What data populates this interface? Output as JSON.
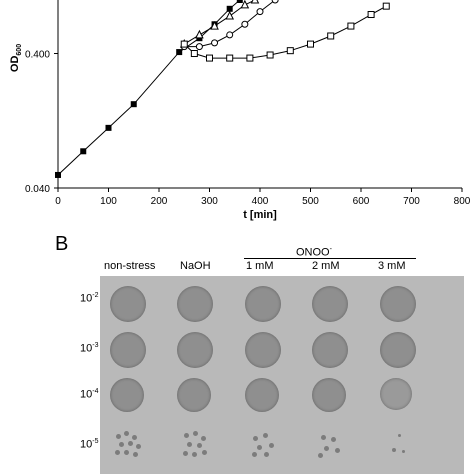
{
  "chart_data": {
    "type": "line",
    "xlabel": "t [min]",
    "ylabel": "OD600",
    "ylabel_main": "OD",
    "ylabel_sub": "600",
    "xlim": [
      0,
      800
    ],
    "ylim_log": [
      0.04,
      1.0
    ],
    "x_ticks": [
      "0",
      "100",
      "200",
      "300",
      "400",
      "500",
      "600",
      "700",
      "800"
    ],
    "y_ticks": [
      "0.040",
      "0.400"
    ],
    "y_tick_values": [
      0.04,
      0.4
    ],
    "series": [
      {
        "marker": "filled-square",
        "points": [
          [
            0,
            0.05
          ],
          [
            50,
            0.075
          ],
          [
            100,
            0.112
          ],
          [
            150,
            0.168
          ],
          [
            240,
            0.41
          ],
          [
            280,
            0.52
          ],
          [
            310,
            0.66
          ],
          [
            340,
            0.86
          ],
          [
            360,
            1.0
          ]
        ]
      },
      {
        "marker": "open-triangle",
        "points": [
          [
            250,
            0.47
          ],
          [
            280,
            0.55
          ],
          [
            310,
            0.64
          ],
          [
            340,
            0.76
          ],
          [
            370,
            0.92
          ],
          [
            390,
            1.0
          ]
        ]
      },
      {
        "marker": "open-circle",
        "points": [
          [
            250,
            0.45
          ],
          [
            280,
            0.45
          ],
          [
            310,
            0.48
          ],
          [
            340,
            0.55
          ],
          [
            370,
            0.66
          ],
          [
            400,
            0.82
          ],
          [
            430,
            1.0
          ]
        ]
      },
      {
        "marker": "open-square",
        "points": [
          [
            250,
            0.47
          ],
          [
            270,
            0.4
          ],
          [
            300,
            0.37
          ],
          [
            340,
            0.37
          ],
          [
            380,
            0.37
          ],
          [
            420,
            0.39
          ],
          [
            460,
            0.42
          ],
          [
            500,
            0.47
          ],
          [
            540,
            0.54
          ],
          [
            580,
            0.64
          ],
          [
            620,
            0.78
          ],
          [
            650,
            0.9
          ]
        ]
      }
    ]
  },
  "panel_b": {
    "letter": "B",
    "columns": [
      "non-stress",
      "NaOH",
      "1 mM",
      "2 mM",
      "3 mM"
    ],
    "group_label": "ONOO",
    "group_label_sup": "-",
    "rows": [
      {
        "base": "10",
        "exp": "-2"
      },
      {
        "base": "10",
        "exp": "-3"
      },
      {
        "base": "10",
        "exp": "-4"
      },
      {
        "base": "10",
        "exp": "-5"
      }
    ]
  }
}
